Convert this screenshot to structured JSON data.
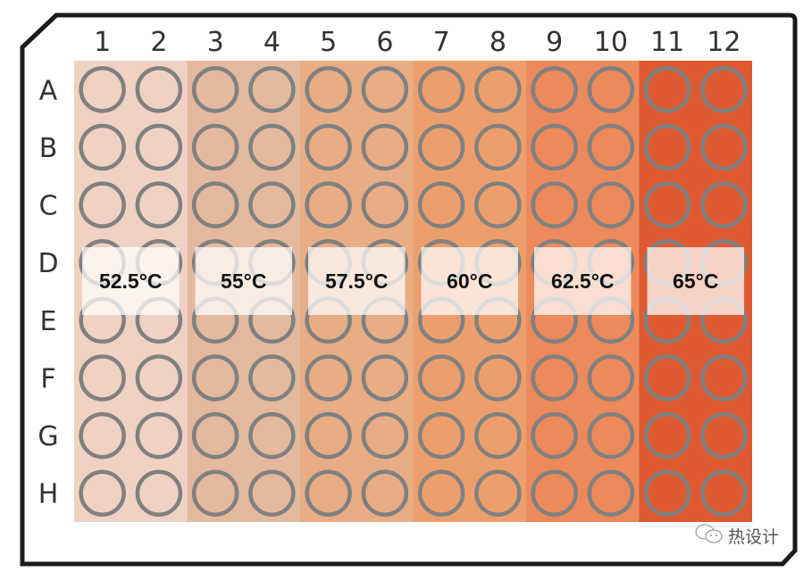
{
  "plate": {
    "columns": [
      "1",
      "2",
      "3",
      "4",
      "5",
      "6",
      "7",
      "8",
      "9",
      "10",
      "11",
      "12"
    ],
    "rows": [
      "A",
      "B",
      "C",
      "D",
      "E",
      "F",
      "G",
      "H"
    ],
    "well_outline_color": "#808080",
    "zones": [
      {
        "label": "52.5°C",
        "columns": [
          "1",
          "2"
        ],
        "color": "#EFD2C3"
      },
      {
        "label": "55°C",
        "columns": [
          "3",
          "4"
        ],
        "color": "#E5B99D"
      },
      {
        "label": "57.5°C",
        "columns": [
          "5",
          "6"
        ],
        "color": "#E8AD85"
      },
      {
        "label": "60°C",
        "columns": [
          "7",
          "8"
        ],
        "color": "#EC9F6C"
      },
      {
        "label": "62.5°C",
        "columns": [
          "9",
          "10"
        ],
        "color": "#EC8A5B"
      },
      {
        "label": "65°C",
        "columns": [
          "11",
          "12"
        ],
        "color": "#E05A31"
      }
    ]
  },
  "watermark": {
    "text": "热设计",
    "icon": "wechat-icon"
  }
}
